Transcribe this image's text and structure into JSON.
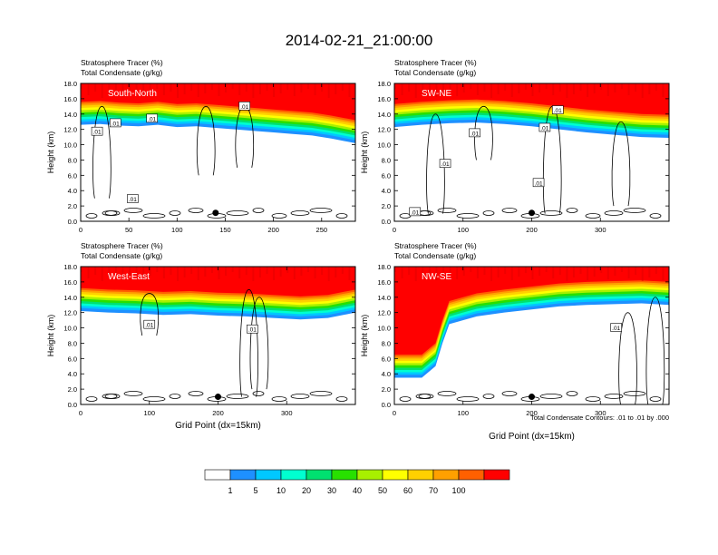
{
  "figure": {
    "title": "2014-02-21_21:00:00",
    "note": "Total Condensate Contours: .01 to .01 by .000"
  },
  "chart_data": [
    {
      "type": "heatmap",
      "label": "South-North",
      "title_lines": [
        "Stratosphere Tracer   (%)",
        "Total Condensate   (g/kg)"
      ],
      "xlabel": "",
      "ylabel": "Height (km)",
      "xlim": [
        0,
        285
      ],
      "xticks": [
        0,
        50,
        100,
        150,
        200,
        250
      ],
      "xticklabels": [
        "0",
        "50",
        "100",
        "150",
        "200",
        "250"
      ],
      "ylim": [
        0,
        18
      ],
      "yticks": [
        0,
        2,
        4,
        6,
        8,
        10,
        12,
        14,
        16,
        18
      ],
      "yticklabels": [
        "0.0",
        "2.0",
        "4.0",
        "6.0",
        "8.0",
        "10.0",
        "12.0",
        "14.0",
        "16.0",
        "18.0"
      ],
      "tropopause_km": [
        [
          0,
          15.6
        ],
        [
          20,
          15.7
        ],
        [
          40,
          15.5
        ],
        [
          60,
          15.4
        ],
        [
          80,
          15.6
        ],
        [
          100,
          15.3
        ],
        [
          120,
          15.4
        ],
        [
          140,
          15.2
        ],
        [
          160,
          15.0
        ],
        [
          180,
          14.8
        ],
        [
          200,
          14.6
        ],
        [
          220,
          14.4
        ],
        [
          240,
          14.2
        ],
        [
          260,
          13.8
        ],
        [
          285,
          13.2
        ]
      ],
      "contour_labels": [
        [
          17,
          11.7,
          ".01"
        ],
        [
          36,
          12.8,
          ".01"
        ],
        [
          74,
          13.4,
          ".01"
        ],
        [
          170,
          15.0,
          ".01"
        ],
        [
          54,
          2.9,
          ".01"
        ]
      ],
      "marker": {
        "x": 140,
        "y": 1.1
      }
    },
    {
      "type": "heatmap",
      "label": "SW-NE",
      "title_lines": [
        "Stratosphere Tracer   (%)",
        "Total Condensate   (g/kg)"
      ],
      "xlabel": "",
      "ylabel": "Height (km)",
      "xlim": [
        0,
        400
      ],
      "xticks": [
        0,
        100,
        200,
        300
      ],
      "xticklabels": [
        "0",
        "100",
        "200",
        "300"
      ],
      "ylim": [
        0,
        18
      ],
      "yticks": [
        0,
        2,
        4,
        6,
        8,
        10,
        12,
        14,
        16,
        18
      ],
      "yticklabels": [
        "0.0",
        "2.0",
        "4.0",
        "6.0",
        "8.0",
        "10.0",
        "12.0",
        "14.0",
        "16.0",
        "18.0"
      ],
      "tropopause_km": [
        [
          0,
          15.3
        ],
        [
          40,
          15.6
        ],
        [
          80,
          15.8
        ],
        [
          120,
          15.9
        ],
        [
          160,
          15.7
        ],
        [
          200,
          15.4
        ],
        [
          240,
          15.0
        ],
        [
          280,
          14.6
        ],
        [
          320,
          14.3
        ],
        [
          360,
          14.0
        ],
        [
          400,
          13.9
        ]
      ],
      "contour_labels": [
        [
          238,
          14.5,
          ".01"
        ],
        [
          219,
          12.2,
          ".01"
        ],
        [
          117,
          11.5,
          ".01"
        ],
        [
          74,
          7.5,
          ".01"
        ],
        [
          210,
          5.0,
          ".01"
        ],
        [
          30,
          1.2,
          ".01"
        ]
      ],
      "marker": {
        "x": 200,
        "y": 1.1
      }
    },
    {
      "type": "heatmap",
      "label": "West-East",
      "title_lines": [
        "Stratosphere Tracer   (%)",
        "Total Condensate   (g/kg)"
      ],
      "xlabel": "Grid Point (dx=15km)",
      "ylabel": "Height (km)",
      "xlim": [
        0,
        400
      ],
      "xticks": [
        0,
        100,
        200,
        300
      ],
      "xticklabels": [
        "0",
        "100",
        "200",
        "300"
      ],
      "ylim": [
        0,
        18
      ],
      "yticks": [
        0,
        2,
        4,
        6,
        8,
        10,
        12,
        14,
        16,
        18
      ],
      "yticklabels": [
        "0.0",
        "2.0",
        "4.0",
        "6.0",
        "8.0",
        "10.0",
        "12.0",
        "14.0",
        "16.0",
        "18.0"
      ],
      "tropopause_km": [
        [
          0,
          15.2
        ],
        [
          40,
          15.0
        ],
        [
          80,
          14.9
        ],
        [
          120,
          14.7
        ],
        [
          160,
          14.8
        ],
        [
          200,
          14.6
        ],
        [
          240,
          14.5
        ],
        [
          280,
          14.3
        ],
        [
          320,
          14.1
        ],
        [
          360,
          14.3
        ],
        [
          400,
          15.0
        ]
      ],
      "contour_labels": [
        [
          100,
          10.4,
          ".01"
        ],
        [
          250,
          9.8,
          ".01"
        ]
      ],
      "marker": {
        "x": 200,
        "y": 1.0
      }
    },
    {
      "type": "heatmap",
      "label": "NW-SE",
      "title_lines": [
        "Stratosphere Tracer   (%)",
        "Total Condensate   (g/kg)"
      ],
      "xlabel": "Grid Point (dx=15km)",
      "ylabel": "Height (km)",
      "xlim": [
        0,
        400
      ],
      "xticks": [
        0,
        100,
        200,
        300
      ],
      "xticklabels": [
        "0",
        "100",
        "200",
        "300"
      ],
      "ylim": [
        0,
        18
      ],
      "yticks": [
        0,
        2,
        4,
        6,
        8,
        10,
        12,
        14,
        16,
        18
      ],
      "yticklabels": [
        "0.0",
        "2.0",
        "4.0",
        "6.0",
        "8.0",
        "10.0",
        "12.0",
        "14.0",
        "16.0",
        "18.0"
      ],
      "tropopause_km": [
        [
          0,
          6.5
        ],
        [
          40,
          6.5
        ],
        [
          60,
          8.0
        ],
        [
          70,
          11.0
        ],
        [
          80,
          13.5
        ],
        [
          120,
          14.5
        ],
        [
          160,
          15.0
        ],
        [
          200,
          15.4
        ],
        [
          240,
          15.8
        ],
        [
          280,
          16.0
        ],
        [
          320,
          16.1
        ],
        [
          360,
          16.2
        ],
        [
          400,
          16.0
        ]
      ],
      "contour_labels": [
        [
          323,
          10.0,
          ".01"
        ]
      ],
      "marker": {
        "x": 200,
        "y": 1.0
      }
    }
  ],
  "colorbar": {
    "levels": [
      "1",
      "5",
      "10",
      "20",
      "30",
      "40",
      "50",
      "60",
      "70",
      "100"
    ],
    "colors": [
      "#ffffff",
      "#1e90ff",
      "#00c8ff",
      "#00ffd0",
      "#00e070",
      "#28e000",
      "#a8f000",
      "#ffff00",
      "#ffd000",
      "#ffa000",
      "#ff6000",
      "#ff0000"
    ]
  }
}
